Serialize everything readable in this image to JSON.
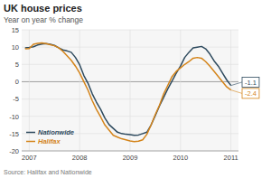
{
  "chart_data": {
    "type": "line",
    "title": "UK house prices",
    "subtitle": "Year on year % change",
    "source": "Source: Halifax and Nationwide",
    "x": [
      2006.917,
      2007.0,
      2007.083,
      2007.167,
      2007.25,
      2007.333,
      2007.417,
      2007.5,
      2007.583,
      2007.667,
      2007.75,
      2007.833,
      2007.917,
      2008.0,
      2008.083,
      2008.167,
      2008.25,
      2008.333,
      2008.417,
      2008.5,
      2008.583,
      2008.667,
      2008.75,
      2008.833,
      2008.917,
      2009.0,
      2009.083,
      2009.167,
      2009.25,
      2009.333,
      2009.417,
      2009.5,
      2009.583,
      2009.667,
      2009.75,
      2009.833,
      2009.917,
      2010.0,
      2010.083,
      2010.167,
      2010.25,
      2010.333,
      2010.417,
      2010.5,
      2010.583,
      2010.667,
      2010.75,
      2010.833,
      2010.917,
      2011.0
    ],
    "series": [
      {
        "name": "Nationwide",
        "color": "#2e4a5e",
        "values": [
          9.8,
          9.9,
          10.1,
          10.6,
          10.9,
          11.0,
          10.8,
          10.5,
          9.8,
          9.2,
          8.9,
          8.5,
          7.0,
          4.9,
          1.8,
          -0.5,
          -3.5,
          -5.9,
          -8.0,
          -10.5,
          -12.4,
          -13.5,
          -14.6,
          -15.0,
          -15.2,
          -15.3,
          -15.5,
          -15.4,
          -15.0,
          -14.6,
          -12.5,
          -9.8,
          -7.0,
          -4.5,
          -2.0,
          0.2,
          2.5,
          4.5,
          7.0,
          8.5,
          9.8,
          10.0,
          10.2,
          9.5,
          8.0,
          6.0,
          4.5,
          2.5,
          0.5,
          -1.1
        ]
      },
      {
        "name": "Halifax",
        "color": "#d4841a",
        "values": [
          9.5,
          9.6,
          10.8,
          11.1,
          11.2,
          11.0,
          10.7,
          10.4,
          9.8,
          8.8,
          7.5,
          6.2,
          4.5,
          2.5,
          0.0,
          -2.5,
          -5.5,
          -8.0,
          -10.2,
          -12.5,
          -14.0,
          -15.5,
          -16.0,
          -16.5,
          -16.8,
          -17.1,
          -17.3,
          -17.2,
          -16.8,
          -15.2,
          -12.5,
          -9.5,
          -6.8,
          -3.5,
          -1.0,
          1.5,
          3.0,
          4.0,
          5.0,
          5.8,
          6.8,
          7.0,
          6.8,
          5.8,
          4.5,
          3.0,
          1.5,
          0.0,
          -1.5,
          -2.4
        ]
      }
    ],
    "annotations": [
      {
        "text": "-1.1",
        "x": 2011.0,
        "y": -1.1
      },
      {
        "text": "-2.4",
        "x": 2011.0,
        "y": -2.4
      }
    ],
    "xlim": [
      2006.85,
      2011.15
    ],
    "xticks": [
      2007,
      2008,
      2009,
      2010,
      2011
    ],
    "ylim": [
      -20,
      15
    ],
    "yticks": [
      -20,
      -15,
      -10,
      -5,
      0,
      5,
      10,
      15
    ],
    "grid": true,
    "legend": "lower left"
  }
}
